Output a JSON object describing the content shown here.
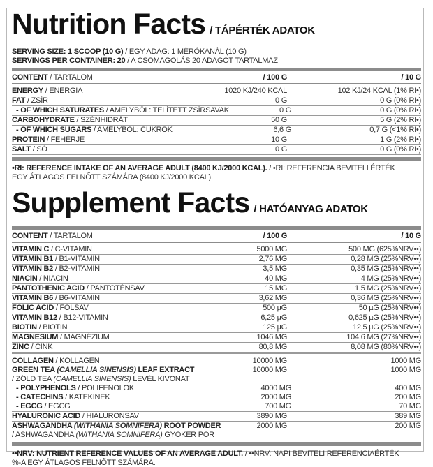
{
  "nutrition": {
    "title": "Nutrition Facts",
    "subtitle": "/ TÁPÉRTÉK ADATOK",
    "serving_size_en": "SERVING SIZE: 1 SCOOP (10 G)",
    "serving_size_hu": "/ EGY ADAG: 1 MÉRŐKANÁL (10 G)",
    "servings_en": "SERVINGS PER CONTAINER: 20",
    "servings_hu": "/ A CSOMAGOLÁS 20 ADAGOT TARTALMAZ",
    "header": {
      "en": "CONTENT",
      "hu": "/ TARTALOM",
      "col1": "/ 100 G",
      "col2": "/ 10 G"
    },
    "rows": [
      {
        "en": "ENERGY",
        "hu": "/ ENERGIA",
        "v100": "1020 KJ/240 KCAL",
        "v10": "102 KJ/24 KCAL (1% RI•)"
      },
      {
        "en": "FAT",
        "hu": "/ ZSÍR",
        "v100": "0 G",
        "v10": "0 G (0% RI•)"
      },
      {
        "en": "- OF WHICH SATURATES",
        "hu": "/  AMELYBŐL: TELÍTETT ZSÍRSAVAK",
        "v100": "0 G",
        "v10": "0 G (0% RI•)",
        "indent": true
      },
      {
        "en": "CARBOHYDRATE",
        "hu": "/ SZÉNHIDRÁT",
        "v100": "50 G",
        "v10": "5 G (2% RI•)"
      },
      {
        "en": "- OF WHICH SUGARS",
        "hu": "/ AMELYBŐL: CUKROK",
        "v100": "6,6 G",
        "v10": "0,7 G (<1% RI•)",
        "indent": true
      },
      {
        "en": "PROTEIN",
        "hu": "/ FEHÉRJE",
        "v100": "10 G",
        "v10": "1 G (2% RI•)"
      },
      {
        "en": "SALT",
        "hu": "/ SÓ",
        "v100": "0 G",
        "v10": "0 G (0% RI•)"
      }
    ],
    "note_en": "•RI: REFERENCE INTAKE OF AN AVERAGE ADULT (8400 KJ/2000 KCAL).",
    "note_hu_1": "/ •RI: REFERENCIA BEVITELI ÉRTÉK",
    "note_hu_2": "EGY ÁTLAGOS FELNŐTT SZÁMÁRA (8400 KJ/2000 KCAL)."
  },
  "supplement": {
    "title": "Supplement Facts",
    "subtitle": "/ HATÓANYAG ADATOK",
    "header": {
      "en": "CONTENT",
      "hu": "/ TARTALOM",
      "col1": "/ 100 G",
      "col2": "/ 10 G"
    },
    "vitamins": [
      {
        "en": "VITAMIN C",
        "hu": "/ C-VITAMIN",
        "v100": "5000 MG",
        "v10": "500 MG (625%NRV••)"
      },
      {
        "en": "VITAMIN B1",
        "hu": "/ B1-VITAMIN",
        "v100": "2,76 MG",
        "v10": "0,28 MG (25%NRV••)"
      },
      {
        "en": "VITAMIN B2",
        "hu": "/ B2-VITAMIN",
        "v100": "3,5 MG",
        "v10": "0,35 MG (25%NRV••)"
      },
      {
        "en": "NIACIN",
        "hu": "/ NIACIN",
        "v100": "40 MG",
        "v10": "4 MG (25%NRV••)"
      },
      {
        "en": "PANTOTHENIC ACID",
        "hu": "/ PANTOTÉNSAV",
        "v100": "15 MG",
        "v10": "1,5 MG (25%NRV••)"
      },
      {
        "en": "VITAMIN B6",
        "hu": "/ B6-VITAMIN",
        "v100": "3,62 MG",
        "v10": "0,36 MG (25%NRV••)"
      },
      {
        "en": "FOLIC ACID",
        "hu": "/ FOLSAV",
        "v100": "500 µG",
        "v10": "50 µG (25%NRV••)"
      },
      {
        "en": "VITAMIN B12",
        "hu": "/ B12-VITAMIN",
        "v100": "6,25 µG",
        "v10": "0,625 µG (25%NRV••)"
      },
      {
        "en": "BIOTIN",
        "hu": "/ BIOTIN",
        "v100": "125 µG",
        "v10": "12,5 µG (25%NRV••)"
      },
      {
        "en": "MAGNESIUM",
        "hu": "/ MAGNÉZIUM",
        "v100": "1046 MG",
        "v10": "104,6 MG (27%NRV••)"
      },
      {
        "en": "ZINC",
        "hu": "/ CINK",
        "v100": "80,8 MG",
        "v10": "8,08 MG (80%NRV••)"
      }
    ],
    "others": [
      {
        "en": "COLLAGEN",
        "hu": "/ KOLLAGÉN",
        "v100": "10000 MG",
        "v10": "1000 MG",
        "line": false
      },
      {
        "en": "GREEN TEA ",
        "en_it": "(CAMELLIA SINENSIS)",
        "en_tail": " LEAF EXTRACT",
        "v100": "10000 MG",
        "v10": "1000 MG",
        "line": false,
        "hu2": "/ ZÖLD TEA ",
        "hu2_it": "(CAMELLIA SINENSIS)",
        "hu2_tail": " LEVÉL KIVONAT"
      },
      {
        "en": "- POLYPHENOLS",
        "hu": "/ POLIFENOLOK",
        "v100": "4000 MG",
        "v10": "400 MG",
        "indent": true,
        "line": false
      },
      {
        "en": "- CATECHINS",
        "hu": "/ KATEKINEK",
        "v100": "2000 MG",
        "v10": "200 MG",
        "indent": true,
        "line": false
      },
      {
        "en": "- EGCG",
        "hu": "/ EGCG",
        "v100": "700 MG",
        "v10": "70 MG",
        "indent": true,
        "line": true
      },
      {
        "en": "HYALURONIC ACID",
        "hu": "/ HIALURONSAV",
        "v100": "3890 MG",
        "v10": "389 MG",
        "line": true
      },
      {
        "en": "ASHWAGANDHA ",
        "en_it": "(WITHANIA SOMNIFERA)",
        "en_tail": " ROOT POWDER",
        "v100": "2000 MG",
        "v10": "200 MG",
        "line": false,
        "hu2": "/ ASHWAGANDHA ",
        "hu2_it": "(WITHANIA SOMNIFERA)",
        "hu2_tail": " GYÖKÉR POR"
      }
    ],
    "note_en": "••NRV: NUTRIENT REFERENCE VALUES OF AN AVERAGE ADULT.",
    "note_hu_1": "/ ••NRV: NAPI BEVITELI REFERENCIAÉRTÉK",
    "note_hu_2": "%-A EGY ÁTLAGOS FELNŐTT SZÁMÁRA."
  }
}
